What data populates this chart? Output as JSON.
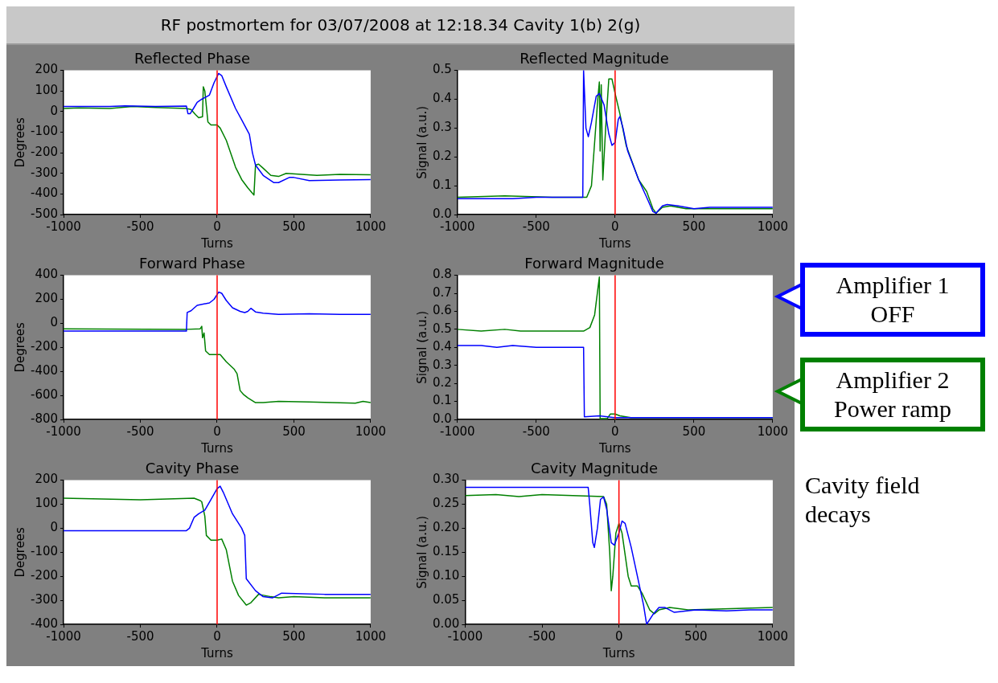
{
  "chart_data": [
    {
      "type": "other",
      "title": "RF postmortem for 03/07/2008 at 12:18.34 Cavity 1(b) 2(g)"
    },
    {
      "type": "line",
      "title": "Reflected Phase",
      "xlabel": "Turns",
      "ylabel": "Degrees",
      "xlim": [
        -1000,
        1000
      ],
      "xticks": [
        -1000,
        -500,
        0,
        500,
        1000
      ],
      "ylim": [
        -500,
        200
      ],
      "yticks": [
        -500,
        -400,
        -300,
        -200,
        -100,
        0,
        100,
        200
      ],
      "grid": false,
      "legend": false,
      "ref_lines": [
        {
          "axis": "x",
          "value": 0,
          "color": "#ff0000"
        }
      ],
      "series": [
        {
          "color": "#0000ff",
          "x": [
            -1000,
            -700,
            -600,
            -400,
            -200,
            -190,
            -175,
            -150,
            -130,
            -100,
            -50,
            -20,
            10,
            30,
            60,
            120,
            160,
            210,
            230,
            250,
            300,
            370,
            400,
            470,
            500,
            600,
            800,
            1000
          ],
          "values": [
            25,
            25,
            28,
            25,
            27,
            -10,
            -10,
            20,
            45,
            60,
            80,
            140,
            185,
            175,
            120,
            15,
            -40,
            -110,
            -200,
            -260,
            -310,
            -345,
            -345,
            -320,
            -320,
            -335,
            -332,
            -330
          ]
        },
        {
          "color": "#008000",
          "x": [
            -1000,
            -900,
            -700,
            -550,
            -400,
            -200,
            -170,
            -140,
            -120,
            -95,
            -90,
            -80,
            -60,
            -40,
            0,
            20,
            60,
            120,
            160,
            200,
            240,
            250,
            270,
            300,
            350,
            400,
            450,
            550,
            650,
            800,
            1000
          ],
          "values": [
            15,
            18,
            15,
            25,
            20,
            15,
            10,
            -15,
            -30,
            -25,
            120,
            100,
            -50,
            -65,
            -65,
            -80,
            -140,
            -270,
            -330,
            -370,
            -405,
            -260,
            -255,
            -275,
            -310,
            -315,
            -300,
            -305,
            -310,
            -305,
            -307
          ]
        }
      ]
    },
    {
      "type": "line",
      "title": "Reflected Magnitude",
      "xlabel": "Turns",
      "ylabel": "Signal (a.u.)",
      "xlim": [
        -1000,
        1000
      ],
      "xticks": [
        -1000,
        -500,
        0,
        500,
        1000
      ],
      "ylim": [
        0,
        0.5
      ],
      "yticks": [
        {
          "value": 0,
          "label": "0.0"
        },
        0.1,
        0.2,
        0.3,
        0.4,
        0.5
      ],
      "grid": false,
      "legend": false,
      "ref_lines": [
        {
          "axis": "x",
          "value": 0,
          "color": "#ff0000"
        }
      ],
      "series": [
        {
          "color": "#0000ff",
          "x": [
            -1000,
            -650,
            -500,
            -205,
            -200,
            -185,
            -170,
            -150,
            -120,
            -100,
            -70,
            -40,
            -20,
            0,
            20,
            30,
            50,
            80,
            150,
            200,
            240,
            260,
            300,
            330,
            400,
            500,
            600,
            800,
            1000
          ],
          "values": [
            0.055,
            0.055,
            0.06,
            0.06,
            0.5,
            0.3,
            0.27,
            0.32,
            0.41,
            0.42,
            0.38,
            0.28,
            0.24,
            0.25,
            0.33,
            0.34,
            0.3,
            0.22,
            0.12,
            0.06,
            0.01,
            0.005,
            0.03,
            0.035,
            0.03,
            0.02,
            0.025,
            0.025,
            0.025
          ]
        },
        {
          "color": "#008000",
          "x": [
            -1000,
            -700,
            -400,
            -180,
            -150,
            -130,
            -110,
            -100,
            -95,
            -88,
            -78,
            -60,
            -40,
            -20,
            0,
            30,
            70,
            150,
            200,
            240,
            260,
            300,
            350,
            450,
            600,
            1000
          ],
          "values": [
            0.06,
            0.065,
            0.06,
            0.06,
            0.1,
            0.25,
            0.4,
            0.46,
            0.22,
            0.45,
            0.12,
            0.3,
            0.47,
            0.47,
            0.42,
            0.35,
            0.24,
            0.12,
            0.08,
            0.02,
            0.005,
            0.025,
            0.03,
            0.02,
            0.02,
            0.02
          ]
        }
      ]
    },
    {
      "type": "line",
      "title": "Forward Phase",
      "xlabel": "Turns",
      "ylabel": "Degrees",
      "xlim": [
        -1000,
        1000
      ],
      "xticks": [
        -1000,
        -500,
        0,
        500,
        1000
      ],
      "ylim": [
        -800,
        400
      ],
      "yticks": [
        -800,
        -600,
        -400,
        -200,
        0,
        200,
        400
      ],
      "grid": false,
      "legend": false,
      "ref_lines": [
        {
          "axis": "x",
          "value": 0,
          "color": "#ff0000"
        }
      ],
      "series": [
        {
          "color": "#0000ff",
          "x": [
            -1000,
            -200,
            -195,
            -170,
            -130,
            -50,
            -20,
            10,
            30,
            60,
            100,
            150,
            180,
            200,
            220,
            250,
            300,
            400,
            600,
            800,
            1000
          ],
          "values": [
            -65,
            -65,
            90,
            105,
            150,
            170,
            200,
            260,
            250,
            190,
            130,
            100,
            90,
            100,
            125,
            95,
            85,
            75,
            80,
            75,
            75
          ]
        },
        {
          "color": "#008000",
          "x": [
            -1000,
            -200,
            -110,
            -100,
            -95,
            -85,
            -75,
            -50,
            20,
            60,
            110,
            130,
            150,
            170,
            200,
            250,
            300,
            400,
            600,
            900,
            950,
            1000
          ],
          "values": [
            -45,
            -50,
            -45,
            -25,
            -120,
            -80,
            -230,
            -260,
            -260,
            -320,
            -380,
            -420,
            -560,
            -590,
            -620,
            -660,
            -660,
            -650,
            -655,
            -665,
            -650,
            -660
          ]
        }
      ]
    },
    {
      "type": "line",
      "title": "Forward Magnitude",
      "xlabel": "Turns",
      "ylabel": "Signal (a.u.)",
      "xlim": [
        -1000,
        1000
      ],
      "xticks": [
        -1000,
        -500,
        0,
        500,
        1000
      ],
      "ylim": [
        0,
        0.8
      ],
      "yticks": [
        {
          "value": 0,
          "label": "0.0"
        },
        0.1,
        0.2,
        0.3,
        0.4,
        0.5,
        0.6,
        0.7,
        0.8
      ],
      "grid": false,
      "legend": false,
      "ref_lines": [
        {
          "axis": "x",
          "value": 0,
          "color": "#ff0000"
        }
      ],
      "annotations": [
        "Amplifier 1\nOFF",
        "Amplifier 2\nPower ramp"
      ],
      "series": [
        {
          "color": "#0000ff",
          "x": [
            -1000,
            -850,
            -750,
            -650,
            -500,
            -200,
            -195,
            -100,
            0,
            100,
            1000
          ],
          "values": [
            0.41,
            0.41,
            0.4,
            0.41,
            0.4,
            0.4,
            0.015,
            0.02,
            0.01,
            0.01,
            0.01
          ]
        },
        {
          "color": "#008000",
          "x": [
            -1000,
            -850,
            -700,
            -600,
            -200,
            -160,
            -130,
            -110,
            -100,
            -95,
            -50,
            -30,
            0,
            30,
            100,
            1000
          ],
          "values": [
            0.5,
            0.49,
            0.5,
            0.49,
            0.49,
            0.51,
            0.58,
            0.72,
            0.79,
            0.005,
            0.005,
            0.03,
            0.03,
            0.02,
            0.01,
            0.01
          ]
        }
      ]
    },
    {
      "type": "line",
      "title": "Cavity Phase",
      "xlabel": "Turns",
      "ylabel": "Degrees",
      "xlim": [
        -1000,
        1000
      ],
      "xticks": [
        -1000,
        -500,
        0,
        500,
        1000
      ],
      "ylim": [
        -400,
        200
      ],
      "yticks": [
        -400,
        -300,
        -200,
        -100,
        0,
        100,
        200
      ],
      "grid": false,
      "legend": false,
      "ref_lines": [
        {
          "axis": "x",
          "value": 0,
          "color": "#ff0000"
        }
      ],
      "series": [
        {
          "color": "#0000ff",
          "x": [
            -1000,
            -200,
            -180,
            -150,
            -120,
            -80,
            -40,
            0,
            20,
            40,
            100,
            160,
            180,
            190,
            250,
            300,
            360,
            420,
            700,
            1000
          ],
          "values": [
            -10,
            -10,
            0,
            45,
            60,
            75,
            120,
            165,
            175,
            150,
            60,
            0,
            -30,
            -210,
            -260,
            -285,
            -290,
            -270,
            -275,
            -275
          ]
        },
        {
          "color": "#008000",
          "x": [
            -1000,
            -500,
            -150,
            -110,
            -100,
            -80,
            -70,
            -40,
            0,
            30,
            60,
            100,
            140,
            190,
            220,
            270,
            350,
            400,
            500,
            700,
            1000
          ],
          "values": [
            125,
            118,
            125,
            115,
            110,
            50,
            -30,
            -50,
            -50,
            -45,
            -90,
            -220,
            -280,
            -320,
            -310,
            -275,
            -285,
            -290,
            -285,
            -290,
            -290
          ]
        }
      ]
    },
    {
      "type": "line",
      "title": "Cavity Magnitude",
      "xlabel": "Turns",
      "ylabel": "Signal (a.u.)",
      "xlim": [
        -1000,
        1000
      ],
      "xticks": [
        -1000,
        -500,
        0,
        500,
        1000
      ],
      "ylim": [
        0,
        0.3
      ],
      "yticks": [
        {
          "value": 0,
          "label": "0.00"
        },
        0.05,
        {
          "value": 0.1,
          "label": "0.10"
        },
        0.15,
        {
          "value": 0.2,
          "label": "0.20"
        },
        0.25,
        {
          "value": 0.3,
          "label": "0.30"
        }
      ],
      "grid": false,
      "legend": false,
      "ref_lines": [
        {
          "axis": "x",
          "value": 0,
          "color": "#ff0000"
        }
      ],
      "annotations": [
        "Cavity field\ndecays"
      ],
      "series": [
        {
          "color": "#0000ff",
          "x": [
            -1000,
            -200,
            -190,
            -170,
            -160,
            -140,
            -120,
            -100,
            -80,
            -50,
            -30,
            0,
            20,
            40,
            80,
            120,
            160,
            180,
            220,
            260,
            300,
            360,
            500,
            700,
            850,
            1000
          ],
          "values": [
            0.285,
            0.285,
            0.25,
            0.17,
            0.16,
            0.2,
            0.26,
            0.265,
            0.24,
            0.17,
            0.165,
            0.19,
            0.215,
            0.21,
            0.16,
            0.1,
            0.04,
            0,
            0.02,
            0.035,
            0.035,
            0.025,
            0.03,
            0.028,
            0.03,
            0.03
          ]
        },
        {
          "color": "#008000",
          "x": [
            -1000,
            -800,
            -650,
            -500,
            -100,
            -80,
            -60,
            -50,
            -40,
            -20,
            0,
            20,
            60,
            80,
            120,
            150,
            200,
            230,
            260,
            330,
            450,
            1000
          ],
          "values": [
            0.268,
            0.27,
            0.266,
            0.27,
            0.266,
            0.25,
            0.15,
            0.07,
            0.1,
            0.19,
            0.21,
            0.19,
            0.1,
            0.08,
            0.08,
            0.065,
            0.03,
            0.022,
            0.03,
            0.035,
            0.03,
            0.035
          ]
        }
      ]
    }
  ]
}
